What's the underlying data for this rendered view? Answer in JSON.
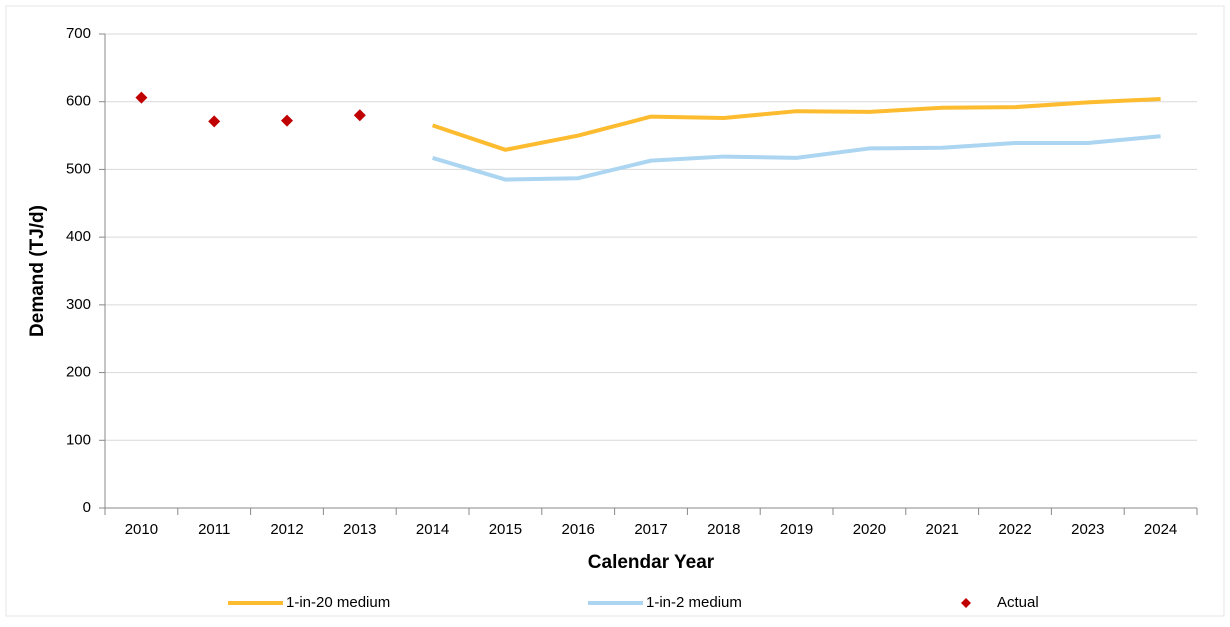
{
  "chart_data": {
    "type": "line",
    "ylabel": "Demand (TJ/d)",
    "xlabel": "Calendar Year",
    "categories": [
      "2010",
      "2011",
      "2012",
      "2013",
      "2014",
      "2015",
      "2016",
      "2017",
      "2018",
      "2019",
      "2020",
      "2021",
      "2022",
      "2023",
      "2024"
    ],
    "series": [
      {
        "name": "1-in-20 medium",
        "color": "#fdbb30",
        "style": "line",
        "values": [
          null,
          null,
          null,
          null,
          565,
          529,
          550,
          578,
          576,
          586,
          585,
          591,
          592,
          599,
          604
        ]
      },
      {
        "name": "1-in-2 medium",
        "color": "#abd5f0",
        "style": "line",
        "values": [
          null,
          null,
          null,
          null,
          517,
          485,
          487,
          513,
          519,
          517,
          531,
          532,
          539,
          539,
          549
        ]
      },
      {
        "name": "Actual",
        "color": "#c00000",
        "style": "diamond",
        "values": [
          606,
          571,
          572,
          580,
          null,
          null,
          null,
          null,
          null,
          null,
          null,
          null,
          null,
          null,
          null
        ]
      }
    ],
    "ylim": [
      0,
      700
    ],
    "yticks": [
      0,
      100,
      200,
      300,
      400,
      500,
      600,
      700
    ],
    "grid": true,
    "legend": "bottom"
  }
}
